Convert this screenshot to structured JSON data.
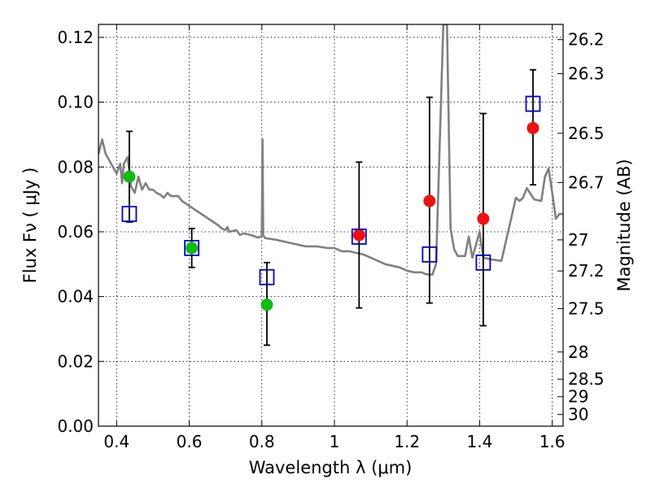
{
  "chart_data": {
    "type": "scatter",
    "title": "",
    "xlabel": "Wavelength  λ (μm)",
    "ylabel": "Flux  Fν  ( μJy )",
    "ylabel_right": "Magnitude (AB)",
    "xlim": [
      0.35,
      1.63
    ],
    "ylim": [
      0.0,
      0.124
    ],
    "grid": true,
    "legend": "none",
    "x_ticks": [
      0.4,
      0.6,
      0.8,
      1.0,
      1.2,
      1.4,
      1.6
    ],
    "x_tick_labels": [
      "0.4",
      "0.6",
      "0.8",
      "1",
      "1.2",
      "1.4",
      "1.6"
    ],
    "y_ticks": [
      0.0,
      0.02,
      0.04,
      0.06,
      0.08,
      0.1,
      0.12
    ],
    "y_tick_labels": [
      "0.00",
      "0.02",
      "0.04",
      "0.06",
      "0.08",
      "0.10",
      "0.12"
    ],
    "right_ticks": [
      {
        "flux": 0.1193,
        "label": "26.2"
      },
      {
        "flux": 0.1088,
        "label": "26.3"
      },
      {
        "flux": 0.0904,
        "label": "26.5"
      },
      {
        "flux": 0.0752,
        "label": "26.7"
      },
      {
        "flux": 0.0575,
        "label": "27"
      },
      {
        "flux": 0.0479,
        "label": "27.2"
      },
      {
        "flux": 0.0363,
        "label": "27.5"
      },
      {
        "flux": 0.0229,
        "label": "28"
      },
      {
        "flux": 0.0145,
        "label": "28.5"
      },
      {
        "flux": 0.0091,
        "label": "29"
      },
      {
        "flux": 0.0036,
        "label": "30"
      }
    ],
    "series": [
      {
        "style": "line",
        "color": "#808080",
        "points": [
          [
            0.35,
            0.084
          ],
          [
            0.36,
            0.0885
          ],
          [
            0.37,
            0.084
          ],
          [
            0.38,
            0.082
          ],
          [
            0.39,
            0.08
          ],
          [
            0.4,
            0.078
          ],
          [
            0.41,
            0.081
          ],
          [
            0.415,
            0.075
          ],
          [
            0.42,
            0.081
          ],
          [
            0.425,
            0.082
          ],
          [
            0.43,
            0.083
          ],
          [
            0.435,
            0.079
          ],
          [
            0.44,
            0.074
          ],
          [
            0.45,
            0.072
          ],
          [
            0.46,
            0.077
          ],
          [
            0.47,
            0.073
          ],
          [
            0.48,
            0.075
          ],
          [
            0.49,
            0.073
          ],
          [
            0.5,
            0.073
          ],
          [
            0.51,
            0.072
          ],
          [
            0.52,
            0.0715
          ],
          [
            0.53,
            0.0705
          ],
          [
            0.54,
            0.072
          ],
          [
            0.55,
            0.071
          ],
          [
            0.57,
            0.071
          ],
          [
            0.58,
            0.0695
          ],
          [
            0.6,
            0.068
          ],
          [
            0.62,
            0.0665
          ],
          [
            0.64,
            0.065
          ],
          [
            0.66,
            0.0635
          ],
          [
            0.68,
            0.062
          ],
          [
            0.69,
            0.061
          ],
          [
            0.7,
            0.0605
          ],
          [
            0.705,
            0.0615
          ],
          [
            0.71,
            0.06
          ],
          [
            0.73,
            0.0605
          ],
          [
            0.74,
            0.059
          ],
          [
            0.75,
            0.0595
          ],
          [
            0.77,
            0.059
          ],
          [
            0.79,
            0.0582
          ],
          [
            0.795,
            0.0584
          ],
          [
            0.8,
            0.0588
          ],
          [
            0.802,
            0.0885
          ],
          [
            0.804,
            0.0588
          ],
          [
            0.81,
            0.058
          ],
          [
            0.84,
            0.0575
          ],
          [
            0.86,
            0.057
          ],
          [
            0.88,
            0.0565
          ],
          [
            0.9,
            0.056
          ],
          [
            0.92,
            0.0555
          ],
          [
            0.95,
            0.0555
          ],
          [
            0.98,
            0.055
          ],
          [
            1.0,
            0.055
          ],
          [
            1.01,
            0.0545
          ],
          [
            1.02,
            0.054
          ],
          [
            1.04,
            0.054
          ],
          [
            1.06,
            0.0535
          ],
          [
            1.08,
            0.053
          ],
          [
            1.1,
            0.052
          ],
          [
            1.12,
            0.051
          ],
          [
            1.14,
            0.05
          ],
          [
            1.16,
            0.0495
          ],
          [
            1.18,
            0.049
          ],
          [
            1.2,
            0.048
          ],
          [
            1.22,
            0.0475
          ],
          [
            1.24,
            0.0475
          ],
          [
            1.25,
            0.047
          ],
          [
            1.26,
            0.0468
          ],
          [
            1.27,
            0.0468
          ],
          [
            1.28,
            0.05
          ],
          [
            1.3,
            0.124
          ],
          [
            1.31,
            0.124
          ],
          [
            1.32,
            0.061
          ],
          [
            1.33,
            0.0545
          ],
          [
            1.34,
            0.0525
          ],
          [
            1.36,
            0.0525
          ],
          [
            1.37,
            0.0585
          ],
          [
            1.38,
            0.052
          ],
          [
            1.4,
            0.06
          ],
          [
            1.41,
            0.052
          ],
          [
            1.43,
            0.0515
          ],
          [
            1.46,
            0.051
          ],
          [
            1.5,
            0.0705
          ],
          [
            1.51,
            0.0695
          ],
          [
            1.52,
            0.0705
          ],
          [
            1.53,
            0.0735
          ],
          [
            1.55,
            0.07
          ],
          [
            1.57,
            0.0695
          ],
          [
            1.58,
            0.077
          ],
          [
            1.59,
            0.0795
          ],
          [
            1.6,
            0.072
          ],
          [
            1.61,
            0.064
          ],
          [
            1.62,
            0.0655
          ],
          [
            1.63,
            0.0655
          ]
        ]
      },
      {
        "style": "filled-circle",
        "color": "#11bb11",
        "points": [
          [
            0.435,
            0.077
          ],
          [
            0.607,
            0.055
          ],
          [
            0.814,
            0.0375
          ]
        ]
      },
      {
        "style": "filled-circle",
        "color": "#ee1111",
        "points": [
          [
            1.068,
            0.059
          ],
          [
            1.262,
            0.0695
          ],
          [
            1.41,
            0.064
          ],
          [
            1.547,
            0.092
          ]
        ]
      },
      {
        "style": "open-square",
        "color": "#0000cc",
        "points": [
          [
            0.435,
            0.0655
          ],
          [
            0.607,
            0.055
          ],
          [
            0.814,
            0.046
          ],
          [
            1.068,
            0.0585
          ],
          [
            1.262,
            0.053
          ],
          [
            1.41,
            0.0505
          ],
          [
            1.547,
            0.0995
          ]
        ]
      }
    ],
    "error_bars": [
      {
        "x": 0.435,
        "low": 0.063,
        "high": 0.091
      },
      {
        "x": 0.607,
        "low": 0.049,
        "high": 0.061
      },
      {
        "x": 0.814,
        "low": 0.025,
        "high": 0.0505
      },
      {
        "x": 1.068,
        "low": 0.0365,
        "high": 0.0815
      },
      {
        "x": 1.262,
        "low": 0.038,
        "high": 0.1015
      },
      {
        "x": 1.41,
        "low": 0.031,
        "high": 0.0965
      },
      {
        "x": 1.547,
        "low": 0.0745,
        "high": 0.11
      }
    ]
  }
}
